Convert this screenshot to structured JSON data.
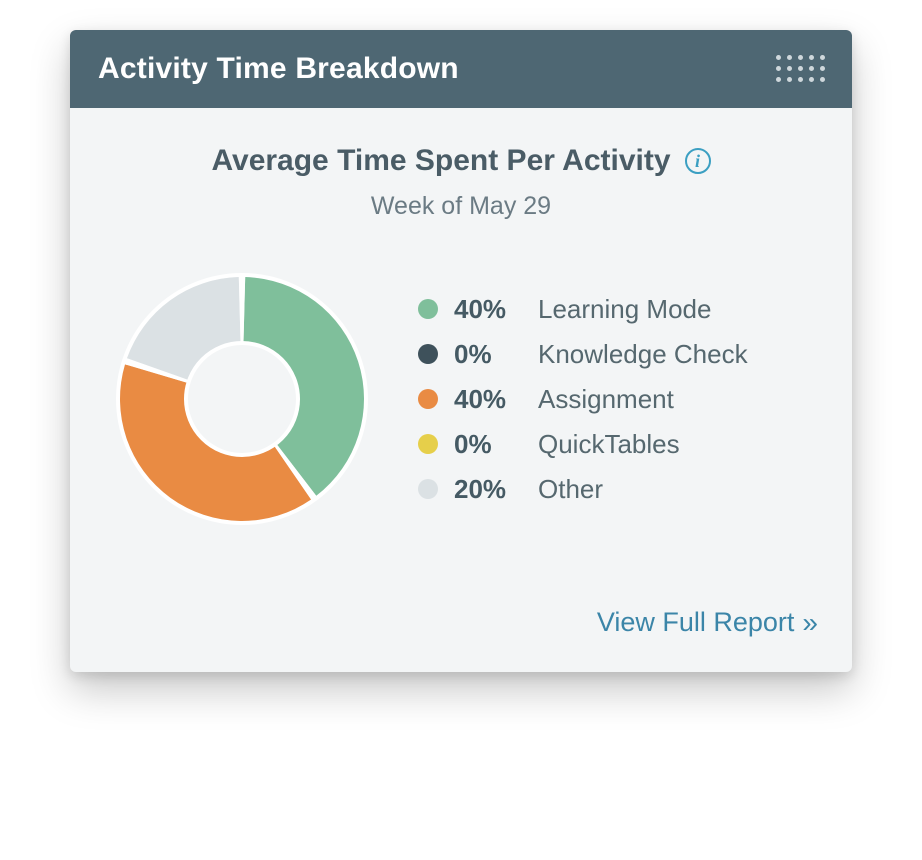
{
  "card": {
    "header_title": "Activity Time Breakdown",
    "header_bg": "#4e6773",
    "header_text_color": "#ffffff",
    "drag_dot_color": "#cfd8dc",
    "body_bg": "#f3f5f6",
    "section_title": "Average Time Spent Per Activity",
    "section_title_color": "#4a5c66",
    "info_icon_color": "#3b9fc2",
    "subheading": "Week of May 29",
    "subheading_color": "#6b7b84",
    "footer_link_text": "View Full Report",
    "footer_link_color": "#3b85a8"
  },
  "chart": {
    "type": "donut",
    "outer_radius": 122,
    "inner_radius": 56,
    "gap_deg": 3,
    "gap_color": "#ffffff",
    "ring_border_color": "#ffffff",
    "ring_border_width": 4,
    "background": "#f3f5f6",
    "series": [
      {
        "label": "Learning Mode",
        "value": 40,
        "color": "#7fbf9b",
        "display": "40%"
      },
      {
        "label": "Knowledge Check",
        "value": 0,
        "color": "#3e515b",
        "display": "0%"
      },
      {
        "label": "Assignment",
        "value": 40,
        "color": "#e98b43",
        "display": "40%"
      },
      {
        "label": "QuickTables",
        "value": 0,
        "color": "#e6cf4a",
        "display": "0%"
      },
      {
        "label": "Other",
        "value": 20,
        "color": "#dbe1e4",
        "display": "20%"
      }
    ],
    "legend_text_color": "#56686f",
    "legend_pct_color": "#455a64",
    "legend_fontsize": 26
  }
}
